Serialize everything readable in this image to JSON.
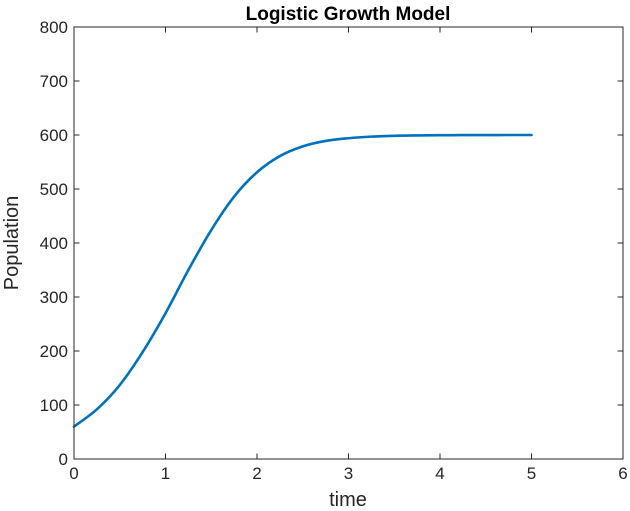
{
  "chart_data": {
    "type": "line",
    "title": "Logistic Growth Model",
    "xlabel": "time",
    "ylabel": "Population",
    "xlim": [
      0,
      6
    ],
    "ylim": [
      0,
      800
    ],
    "xticks": [
      0,
      1,
      2,
      3,
      4,
      5,
      6
    ],
    "yticks": [
      0,
      100,
      200,
      300,
      400,
      500,
      600,
      700,
      800
    ],
    "grid": false,
    "series": [
      {
        "color": "#0072BD",
        "x": [
          0,
          0.25,
          0.5,
          0.75,
          1.0,
          1.25,
          1.5,
          1.75,
          2.0,
          2.25,
          2.5,
          2.75,
          3.0,
          3.25,
          3.5,
          3.75,
          4.0,
          4.25,
          4.5,
          4.75,
          5.0
        ],
        "y": [
          60,
          92,
          137,
          198,
          270,
          350,
          424,
          486,
          531,
          561,
          579,
          589,
          594,
          597,
          598.5,
          599.2,
          599.6,
          599.8,
          599.9,
          600,
          600
        ]
      }
    ]
  }
}
